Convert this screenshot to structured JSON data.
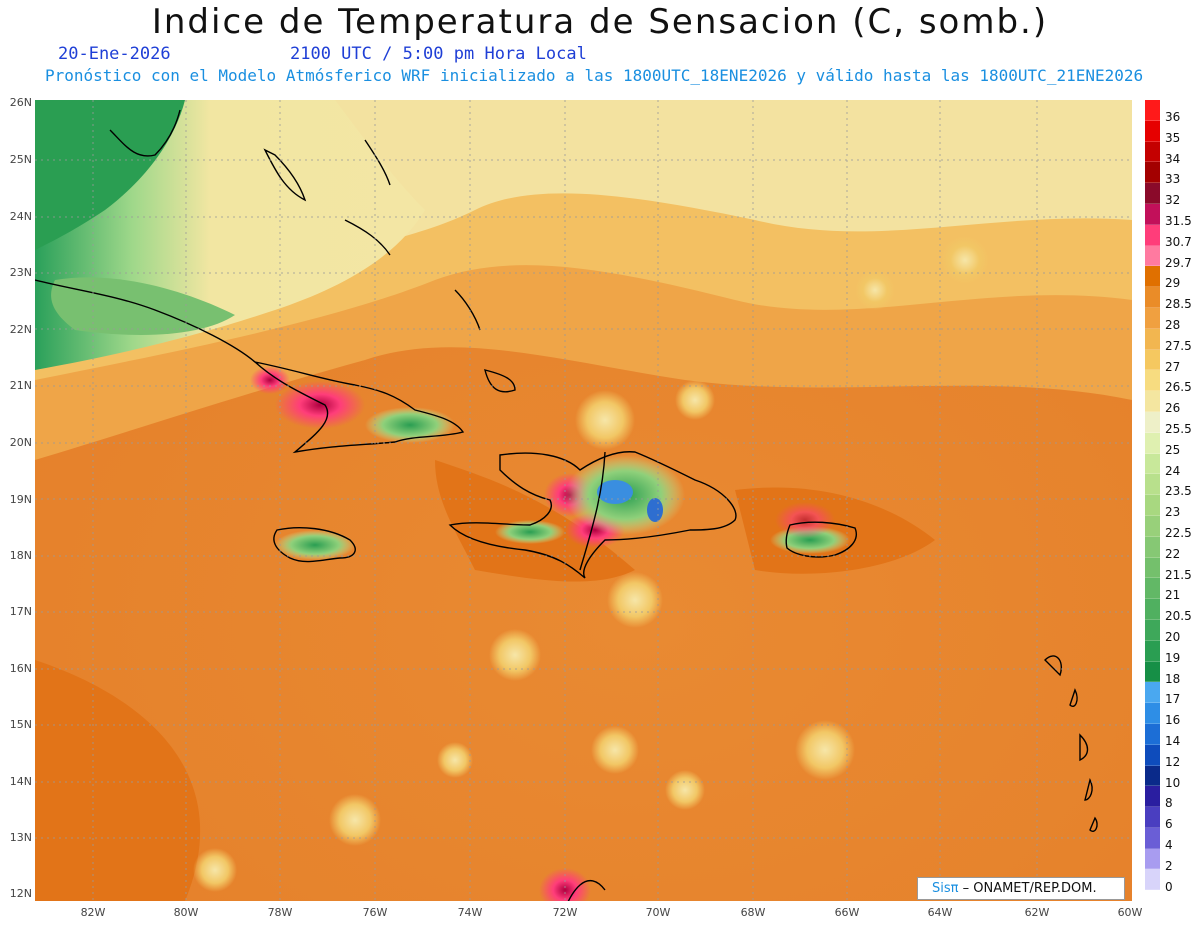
{
  "header": {
    "title": "Indice de Temperatura de Sensacion (C, somb.)",
    "date": "20-Ene-2026",
    "time": "2100 UTC / 5:00 pm Hora Local",
    "description": "Pronóstico con el Modelo Atmósferico WRF inicializado a las 1800UTC_18ENE2026 y válido hasta las  1800UTC_21ENE2026"
  },
  "map": {
    "lat_labels": [
      "26N",
      "25N",
      "24N",
      "23N",
      "22N",
      "21N",
      "20N",
      "19N",
      "18N",
      "17N",
      "16N",
      "15N",
      "14N",
      "13N",
      "12N"
    ],
    "lon_labels": [
      "82W",
      "80W",
      "78W",
      "76W",
      "74W",
      "72W",
      "70W",
      "68W",
      "66W",
      "64W",
      "62W",
      "60W"
    ]
  },
  "colorbar": {
    "labels": [
      "36",
      "35",
      "34",
      "33",
      "32",
      "31.5",
      "30.7",
      "29.7",
      "29",
      "28.5",
      "28",
      "27.5",
      "27",
      "26.5",
      "26",
      "25.5",
      "25",
      "24",
      "23.5",
      "23",
      "22.5",
      "22",
      "21.5",
      "21",
      "20.5",
      "20",
      "19",
      "18",
      "17",
      "16",
      "14",
      "12",
      "10",
      "8",
      "6",
      "4",
      "2",
      "0"
    ],
    "colors": [
      "#ff1a1a",
      "#e60000",
      "#c40000",
      "#a30000",
      "#8a0a2a",
      "#c2105a",
      "#ff3d7a",
      "#ff7aa0",
      "#e07000",
      "#ea8c28",
      "#f0a040",
      "#f2b650",
      "#f5c860",
      "#f7dc80",
      "#f4e6a0",
      "#eef0c8",
      "#dff0b0",
      "#c8e89a",
      "#b8e08c",
      "#a8d880",
      "#98d07a",
      "#86c874",
      "#74c06c",
      "#62b866",
      "#50b060",
      "#3ea85a",
      "#2a9e52",
      "#168f46",
      "#4aa8f0",
      "#2e8ee6",
      "#1c6ed6",
      "#0e4cbc",
      "#0a2a8a",
      "#2a1ea0",
      "#4a3ec0",
      "#6a5ed6",
      "#a89cf0",
      "#d8d4fa"
    ]
  },
  "credit": {
    "brand": "Sisπ",
    "org": "– ONAMET/REP.DOM."
  }
}
